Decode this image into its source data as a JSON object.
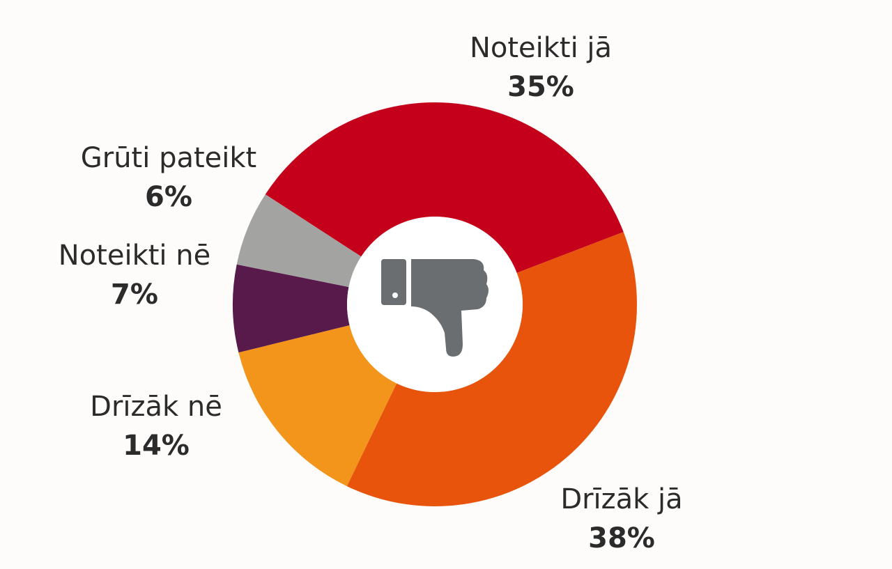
{
  "chart_data": {
    "type": "pie",
    "variant": "donut",
    "center_icon": "thumbs-down-icon",
    "slices": [
      {
        "label": "Noteikti jā",
        "value": 35,
        "value_label": "35%",
        "color": "#c4001a"
      },
      {
        "label": "Drīzāk jā",
        "value": 38,
        "value_label": "38%",
        "color": "#e8540c"
      },
      {
        "label": "Drīzāk nē",
        "value": 14,
        "value_label": "14%",
        "color": "#f3941b"
      },
      {
        "label": "Noteikti nē",
        "value": 7,
        "value_label": "7%",
        "color": "#571a4a"
      },
      {
        "label": "Grūti pateikt",
        "value": 6,
        "value_label": "6%",
        "color": "#a3a3a1"
      }
    ],
    "icon_color": "#6b6e70"
  }
}
